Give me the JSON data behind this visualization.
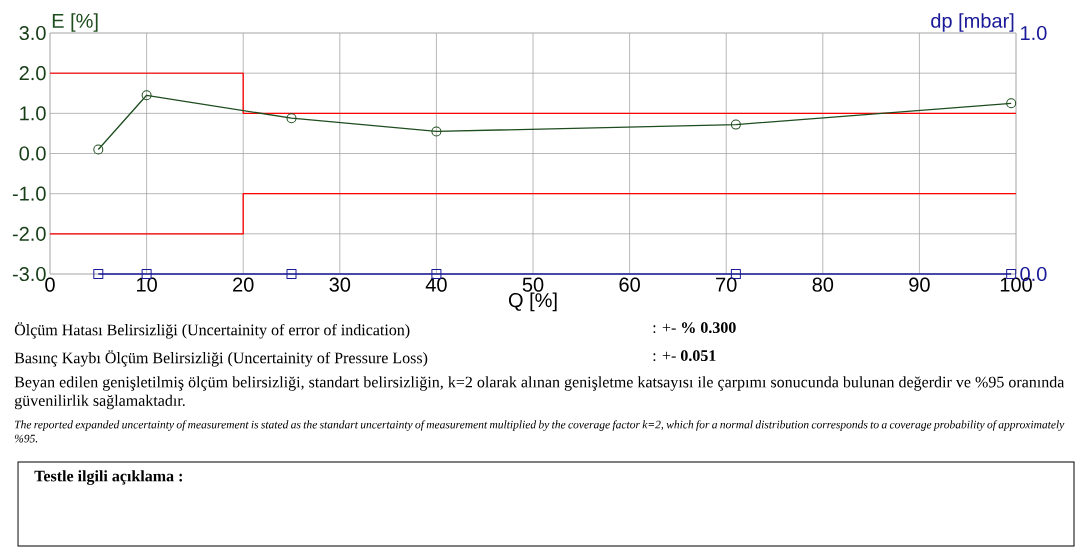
{
  "chart_data": {
    "type": "line",
    "x": [
      5,
      10,
      25,
      40,
      71,
      99.5
    ],
    "xlabel": "Q [%]",
    "ylabel": "E [%]",
    "y2label": "dp [mbar]",
    "xlim": [
      0,
      100
    ],
    "xticks": [
      0,
      10,
      20,
      30,
      40,
      50,
      60,
      70,
      80,
      90,
      100
    ],
    "ylim": [
      -3,
      3
    ],
    "yticks": [
      {
        "value": -3,
        "label": "-3.0"
      },
      {
        "value": -2,
        "label": "-2.0"
      },
      {
        "value": -1,
        "label": "-1.0"
      },
      {
        "value": 0,
        "label": "0.0"
      },
      {
        "value": 1,
        "label": "1.0"
      },
      {
        "value": 2,
        "label": "2.0"
      },
      {
        "value": 3,
        "label": "3.0"
      }
    ],
    "y2lim": [
      0,
      1
    ],
    "y2ticks": [
      {
        "value": 0,
        "label": "0.0"
      },
      {
        "value": 1,
        "label": "1.0"
      }
    ],
    "grid": true,
    "series": [
      {
        "type": "step",
        "x": [
          0,
          20,
          100
        ],
        "values": [
          2,
          1,
          1
        ],
        "color": "#ff0000",
        "marker": "none"
      },
      {
        "type": "step",
        "x": [
          0,
          20,
          100
        ],
        "values": [
          -2,
          -1,
          -1
        ],
        "color": "#ff0000",
        "marker": "none"
      },
      {
        "values": [
          0.1,
          1.45,
          0.88,
          0.55,
          0.72,
          1.25
        ],
        "color": "#1e4d1e",
        "marker": "circle"
      },
      {
        "values": [
          0,
          0,
          0,
          0,
          0,
          0
        ],
        "color": "#1a1a99",
        "marker": "square",
        "axis": "y2"
      }
    ],
    "annotations": [
      "Ölçüm Hatası Belirsizliği (Uncertainity of error of indication)",
      ":  +- **% 0.300**",
      "Basınç Kaybı Ölçüm Belirsizliği (Uncertainity of Pressure Loss)",
      ":  +- **0.051**",
      "Beyan edilen genişletilmiş ölçüm belirsizliği, standart belirsizliğin, k=2 olarak alınan genişletme katsayısı ile çarpımı sonucunda bulunan değerdir ve %95 oranında güvenilirlik sağlamaktadır.",
      "The reported expanded uncertainty of measurement is stated as the standart uncertainty of measurement multiplied by the coverage factor k=2, which for a normal distribution corresponds to a coverage probability of approximately %95.",
      "Testle ilgili açıklama :"
    ]
  }
}
